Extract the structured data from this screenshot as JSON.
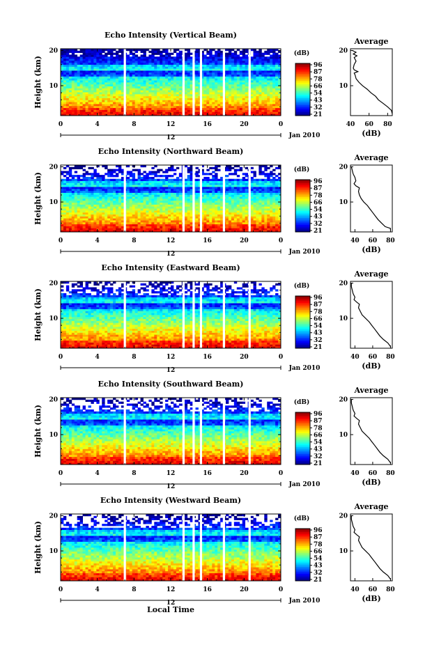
{
  "figure": {
    "time_axis_label": "Local Time"
  },
  "chart_data": [
    {
      "type": "heatmap",
      "title": "Echo Intensity (Vertical Beam)",
      "ylabel": "Height (km)",
      "x_ticks": [
        "0",
        "4",
        "8",
        "12",
        "16",
        "20",
        "0"
      ],
      "xlim": [
        0,
        24
      ],
      "y_ticks": [
        "20",
        "10"
      ],
      "ylim": [
        1.5,
        20.5
      ],
      "date_ticks": [
        "12"
      ],
      "date_label": "Jan 2010",
      "colorbar": {
        "unit": "(dB)",
        "ticks": [
          "96",
          "87",
          "78",
          "66",
          "54",
          "43",
          "32",
          "21"
        ],
        "range": [
          21,
          96
        ]
      },
      "gaps_hours": [
        7.0,
        13.4,
        14.5,
        15.3,
        17.8,
        20.6
      ],
      "profile": {
        "title": "Average",
        "xlabel": "(dB)",
        "x_ticks": [
          "40",
          "60",
          "80"
        ],
        "xlim": [
          40,
          85
        ],
        "y_ticks": [
          "20",
          "10"
        ],
        "ylim": [
          1.5,
          20.5
        ],
        "points": [
          [
            86,
            2
          ],
          [
            84,
            3
          ],
          [
            80,
            4
          ],
          [
            75,
            5
          ],
          [
            70,
            6
          ],
          [
            67,
            7
          ],
          [
            62,
            8
          ],
          [
            58,
            9
          ],
          [
            53,
            10
          ],
          [
            49,
            11
          ],
          [
            46,
            12
          ],
          [
            45,
            13
          ],
          [
            44,
            13.6
          ],
          [
            48,
            14
          ],
          [
            44,
            14.5
          ],
          [
            43,
            15
          ],
          [
            44,
            16
          ],
          [
            46,
            17
          ],
          [
            44,
            18
          ],
          [
            47,
            18.5
          ],
          [
            43,
            19
          ],
          [
            46,
            19.5
          ],
          [
            42,
            20
          ]
        ]
      }
    },
    {
      "type": "heatmap",
      "title": "Echo Intensity (Northward Beam)",
      "ylabel": "Height (km)",
      "x_ticks": [
        "0",
        "4",
        "8",
        "12",
        "16",
        "20",
        "0"
      ],
      "xlim": [
        0,
        24
      ],
      "y_ticks": [
        "20",
        "10"
      ],
      "ylim": [
        1.5,
        20.5
      ],
      "date_ticks": [
        "12"
      ],
      "date_label": "Jan 2010",
      "colorbar": {
        "unit": "(dB)",
        "ticks": [
          "96",
          "87",
          "78",
          "66",
          "54",
          "43",
          "32",
          "21"
        ],
        "range": [
          21,
          96
        ]
      },
      "gaps_hours": [
        7.0,
        13.4,
        14.5,
        15.3,
        17.8,
        20.6
      ],
      "profile": {
        "title": "Average",
        "xlabel": "(dB)",
        "x_ticks": [
          "40",
          "60",
          "80"
        ],
        "xlim": [
          35,
          82
        ],
        "y_ticks": [
          "20",
          "10"
        ],
        "ylim": [
          1.5,
          20.5
        ],
        "points": [
          [
            80,
            2
          ],
          [
            80,
            2.5
          ],
          [
            74,
            3
          ],
          [
            70,
            4
          ],
          [
            66,
            5
          ],
          [
            63,
            6
          ],
          [
            60,
            7
          ],
          [
            57,
            8
          ],
          [
            54,
            9
          ],
          [
            50,
            10
          ],
          [
            47,
            11
          ],
          [
            45,
            12
          ],
          [
            44,
            13
          ],
          [
            45,
            14
          ],
          [
            41,
            14.6
          ],
          [
            39,
            15.2
          ],
          [
            41,
            16
          ],
          [
            40,
            17
          ],
          [
            38,
            18
          ],
          [
            37,
            19
          ],
          [
            36,
            20
          ]
        ]
      }
    },
    {
      "type": "heatmap",
      "title": "Echo Intensity (Eastward Beam)",
      "ylabel": "Height (km)",
      "x_ticks": [
        "0",
        "4",
        "8",
        "12",
        "16",
        "20",
        "0"
      ],
      "xlim": [
        0,
        24
      ],
      "y_ticks": [
        "20",
        "10"
      ],
      "ylim": [
        1.5,
        20.5
      ],
      "date_ticks": [
        "12"
      ],
      "date_label": "Jan 2010",
      "colorbar": {
        "unit": "(dB)",
        "ticks": [
          "96",
          "87",
          "78",
          "66",
          "54",
          "43",
          "32",
          "21"
        ],
        "range": [
          21,
          96
        ]
      },
      "gaps_hours": [
        7.0,
        13.4,
        14.5,
        15.3,
        17.8,
        20.6
      ],
      "profile": {
        "title": "Average",
        "xlabel": "(dB)",
        "x_ticks": [
          "40",
          "60",
          "80"
        ],
        "xlim": [
          35,
          82
        ],
        "y_ticks": [
          "20",
          "10"
        ],
        "ylim": [
          1.5,
          20.5
        ],
        "points": [
          [
            80,
            2
          ],
          [
            77,
            3
          ],
          [
            72,
            4
          ],
          [
            68,
            5
          ],
          [
            65,
            6
          ],
          [
            62,
            7
          ],
          [
            59,
            8
          ],
          [
            56,
            9
          ],
          [
            52,
            10
          ],
          [
            48,
            11
          ],
          [
            46,
            12
          ],
          [
            44,
            13
          ],
          [
            45,
            14
          ],
          [
            42,
            14.6
          ],
          [
            39,
            15.3
          ],
          [
            40,
            16
          ],
          [
            38,
            17
          ],
          [
            37,
            18
          ],
          [
            36,
            19
          ],
          [
            36,
            20
          ]
        ]
      }
    },
    {
      "type": "heatmap",
      "title": "Echo Intensity (Southward Beam)",
      "ylabel": "Height (km)",
      "x_ticks": [
        "0",
        "4",
        "8",
        "12",
        "16",
        "20",
        "0"
      ],
      "xlim": [
        0,
        24
      ],
      "y_ticks": [
        "20",
        "10"
      ],
      "ylim": [
        1.5,
        20.5
      ],
      "date_ticks": [
        "12"
      ],
      "date_label": "Jan 2010",
      "colorbar": {
        "unit": "(dB)",
        "ticks": [
          "96",
          "87",
          "78",
          "66",
          "54",
          "43",
          "32",
          "21"
        ],
        "range": [
          21,
          96
        ]
      },
      "gaps_hours": [
        7.0,
        13.4,
        14.5,
        15.3,
        17.8,
        20.6
      ],
      "profile": {
        "title": "Average",
        "xlabel": "(dB)",
        "x_ticks": [
          "40",
          "60",
          "80"
        ],
        "xlim": [
          35,
          82
        ],
        "y_ticks": [
          "20",
          "10"
        ],
        "ylim": [
          1.5,
          20.5
        ],
        "points": [
          [
            80,
            2
          ],
          [
            77,
            3
          ],
          [
            72,
            4
          ],
          [
            68,
            5
          ],
          [
            65,
            6
          ],
          [
            62,
            7
          ],
          [
            59,
            8
          ],
          [
            56,
            9
          ],
          [
            52,
            10
          ],
          [
            48,
            11
          ],
          [
            46,
            12
          ],
          [
            44,
            13
          ],
          [
            45,
            14
          ],
          [
            42,
            14.6
          ],
          [
            39,
            15.3
          ],
          [
            40,
            16
          ],
          [
            38,
            17
          ],
          [
            37,
            18
          ],
          [
            36,
            19
          ],
          [
            36,
            20
          ]
        ]
      }
    },
    {
      "type": "heatmap",
      "title": "Echo Intensity (Westward Beam)",
      "ylabel": "Height (km)",
      "x_ticks": [
        "0",
        "4",
        "8",
        "12",
        "16",
        "20",
        "0"
      ],
      "xlim": [
        0,
        24
      ],
      "y_ticks": [
        "20",
        "10"
      ],
      "ylim": [
        1.5,
        20.5
      ],
      "date_ticks": [
        "12"
      ],
      "date_label": "Jan 2010",
      "colorbar": {
        "unit": "(dB)",
        "ticks": [
          "96",
          "87",
          "78",
          "66",
          "54",
          "43",
          "32",
          "21"
        ],
        "range": [
          21,
          96
        ]
      },
      "gaps_hours": [
        7.0,
        13.4,
        14.5,
        15.3,
        17.8,
        20.6
      ],
      "profile": {
        "title": "Average",
        "xlabel": "(dB)",
        "x_ticks": [
          "40",
          "60",
          "80"
        ],
        "xlim": [
          35,
          82
        ],
        "y_ticks": [
          "20",
          "10"
        ],
        "ylim": [
          1.5,
          20.5
        ],
        "points": [
          [
            80,
            2
          ],
          [
            77,
            3
          ],
          [
            72,
            4
          ],
          [
            68,
            5
          ],
          [
            65,
            6
          ],
          [
            62,
            7
          ],
          [
            59,
            8
          ],
          [
            56,
            9
          ],
          [
            52,
            10
          ],
          [
            48,
            11
          ],
          [
            46,
            12
          ],
          [
            44,
            13
          ],
          [
            45,
            14
          ],
          [
            42,
            14.6
          ],
          [
            39,
            15.3
          ],
          [
            40,
            16
          ],
          [
            38,
            17
          ],
          [
            37,
            18
          ],
          [
            36,
            19
          ],
          [
            36,
            20
          ]
        ]
      }
    }
  ]
}
